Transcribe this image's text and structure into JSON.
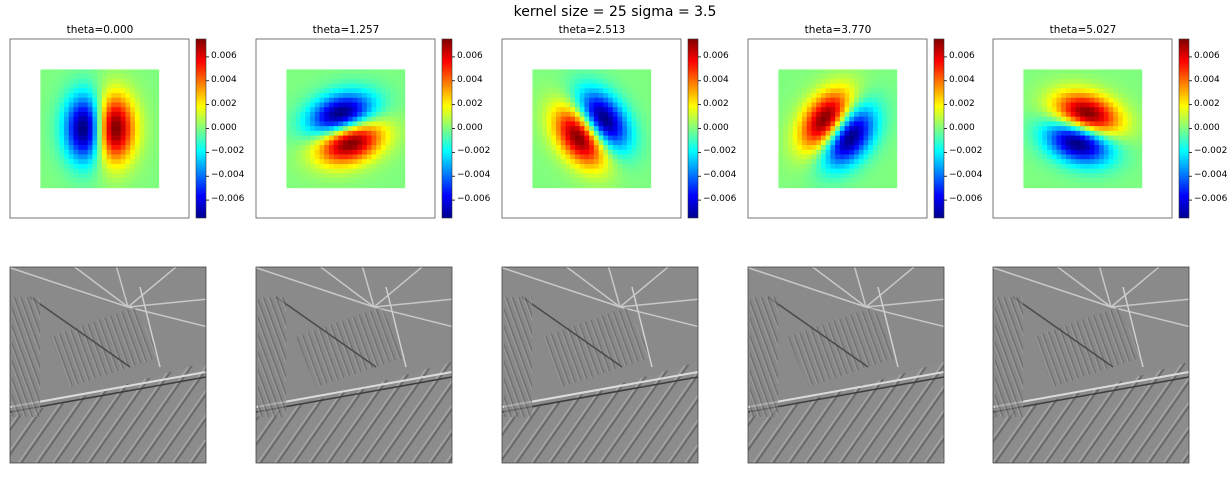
{
  "figure": {
    "title": "kernel size = 25 sigma = 3.5"
  },
  "chart_data": [
    {
      "type": "heatmap",
      "title": "theta=0.000",
      "theta": 0.0,
      "kernel_size": 25,
      "sigma": 3.5,
      "colormap": "jet",
      "clim": [
        -0.0075,
        0.0075
      ],
      "colorbar_ticks": [
        0.006,
        0.004,
        0.002,
        0.0,
        -0.002,
        -0.004,
        -0.006
      ],
      "colorbar_tick_labels": [
        "0.006",
        "0.004",
        "0.002",
        "0.000",
        "−0.002",
        "−0.004",
        "−0.006"
      ]
    },
    {
      "type": "heatmap",
      "title": "theta=1.257",
      "theta": 1.257,
      "kernel_size": 25,
      "sigma": 3.5,
      "colormap": "jet",
      "clim": [
        -0.0075,
        0.0075
      ],
      "colorbar_ticks": [
        0.006,
        0.004,
        0.002,
        0.0,
        -0.002,
        -0.004,
        -0.006
      ],
      "colorbar_tick_labels": [
        "0.006",
        "0.004",
        "0.002",
        "0.000",
        "−0.002",
        "−0.004",
        "−0.006"
      ]
    },
    {
      "type": "heatmap",
      "title": "theta=2.513",
      "theta": 2.513,
      "kernel_size": 25,
      "sigma": 3.5,
      "colormap": "jet",
      "clim": [
        -0.0075,
        0.0075
      ],
      "colorbar_ticks": [
        0.006,
        0.004,
        0.002,
        0.0,
        -0.002,
        -0.004,
        -0.006
      ],
      "colorbar_tick_labels": [
        "0.006",
        "0.004",
        "0.002",
        "0.000",
        "−0.002",
        "−0.004",
        "−0.006"
      ]
    },
    {
      "type": "heatmap",
      "title": "theta=3.770",
      "theta": 3.77,
      "kernel_size": 25,
      "sigma": 3.5,
      "colormap": "jet",
      "clim": [
        -0.0075,
        0.0075
      ],
      "colorbar_ticks": [
        0.006,
        0.004,
        0.002,
        0.0,
        -0.002,
        -0.004,
        -0.006
      ],
      "colorbar_tick_labels": [
        "0.006",
        "0.004",
        "0.002",
        "0.000",
        "−0.002",
        "−0.004",
        "−0.006"
      ]
    },
    {
      "type": "heatmap",
      "title": "theta=5.027",
      "theta": 5.027,
      "kernel_size": 25,
      "sigma": 3.5,
      "colormap": "jet",
      "clim": [
        -0.0075,
        0.0075
      ],
      "colorbar_ticks": [
        0.006,
        0.004,
        0.002,
        0.0,
        -0.002,
        -0.004,
        -0.006
      ],
      "colorbar_tick_labels": [
        "0.006",
        "0.004",
        "0.002",
        "0.000",
        "−0.002",
        "−0.004",
        "−0.006"
      ]
    }
  ],
  "filtered_images": {
    "colormap": "gray",
    "count": 5
  }
}
